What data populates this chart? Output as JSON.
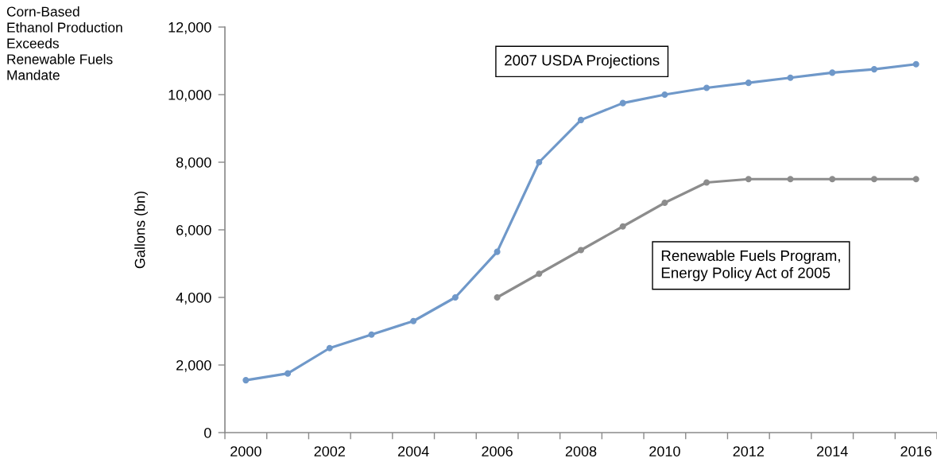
{
  "chart_data": {
    "type": "line",
    "title": "Corn-Based Ethanol Production Exceeds Renewable Fuels Mandate",
    "ylabel": "Gallons (bn)",
    "categories": [
      "2000",
      null,
      "2002",
      null,
      "2004",
      null,
      "2006",
      null,
      "2008",
      null,
      "2010",
      null,
      "2012",
      null,
      "2014",
      null,
      "2016"
    ],
    "series": [
      {
        "name": "2007 USDA Projections",
        "color": "#6f98c9",
        "values": [
          1550,
          1750,
          2500,
          2900,
          3300,
          4000,
          5350,
          8000,
          9250,
          9750,
          10000,
          10200,
          10350,
          10500,
          10650,
          10750,
          10900
        ]
      },
      {
        "name": "Renewable Fuels Program, Energy Policy Act of 2005",
        "color": "#8c8c8c",
        "values": [
          null,
          null,
          null,
          null,
          null,
          null,
          4000,
          4700,
          5400,
          6100,
          6800,
          7400,
          7500,
          7500,
          7500,
          7500,
          7500
        ]
      }
    ],
    "ylim": [
      0,
      12000
    ],
    "yticks": [
      0,
      {
        "value": 2000,
        "label": "2,000"
      },
      {
        "value": 4000,
        "label": "4,000"
      },
      {
        "value": 6000,
        "label": "6,000"
      },
      {
        "value": 8000,
        "label": "8,000"
      },
      {
        "value": 10000,
        "label": "10,000"
      },
      {
        "value": 12000,
        "label": "12,000"
      }
    ],
    "marker": "circle",
    "line_style": "solid",
    "grid": false,
    "legend": false
  }
}
